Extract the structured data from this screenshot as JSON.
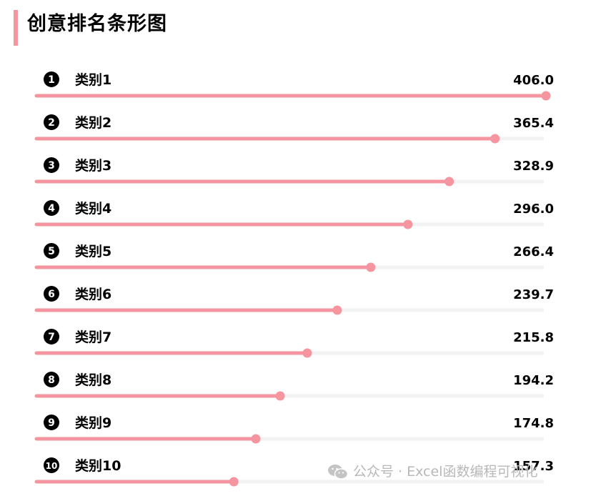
{
  "title": "创意排名条形图",
  "colors": {
    "accent": "#f5959f",
    "track": "#f2f2f2",
    "badge": "#000000",
    "text": "#000000"
  },
  "chart_data": {
    "type": "bar",
    "orientation": "horizontal",
    "title": "创意排名条形图",
    "categories": [
      "类别1",
      "类别2",
      "类别3",
      "类别4",
      "类别5",
      "类别6",
      "类别7",
      "类别8",
      "类别9",
      "类别10"
    ],
    "ranks": [
      "1",
      "2",
      "3",
      "4",
      "5",
      "6",
      "7",
      "8",
      "9",
      "10"
    ],
    "values": [
      406.0,
      365.4,
      328.9,
      296.0,
      266.4,
      239.7,
      215.8,
      194.2,
      174.8,
      157.3
    ],
    "value_labels": [
      "406.0",
      "365.4",
      "328.9",
      "296.0",
      "266.4",
      "239.7",
      "215.8",
      "194.2",
      "174.8",
      "157.3"
    ],
    "xlim": [
      0,
      406.0
    ],
    "grid": false,
    "legend": "none"
  },
  "watermark": {
    "icon": "wechat-icon",
    "text": "公众号 · Excel函数编程可视化"
  }
}
